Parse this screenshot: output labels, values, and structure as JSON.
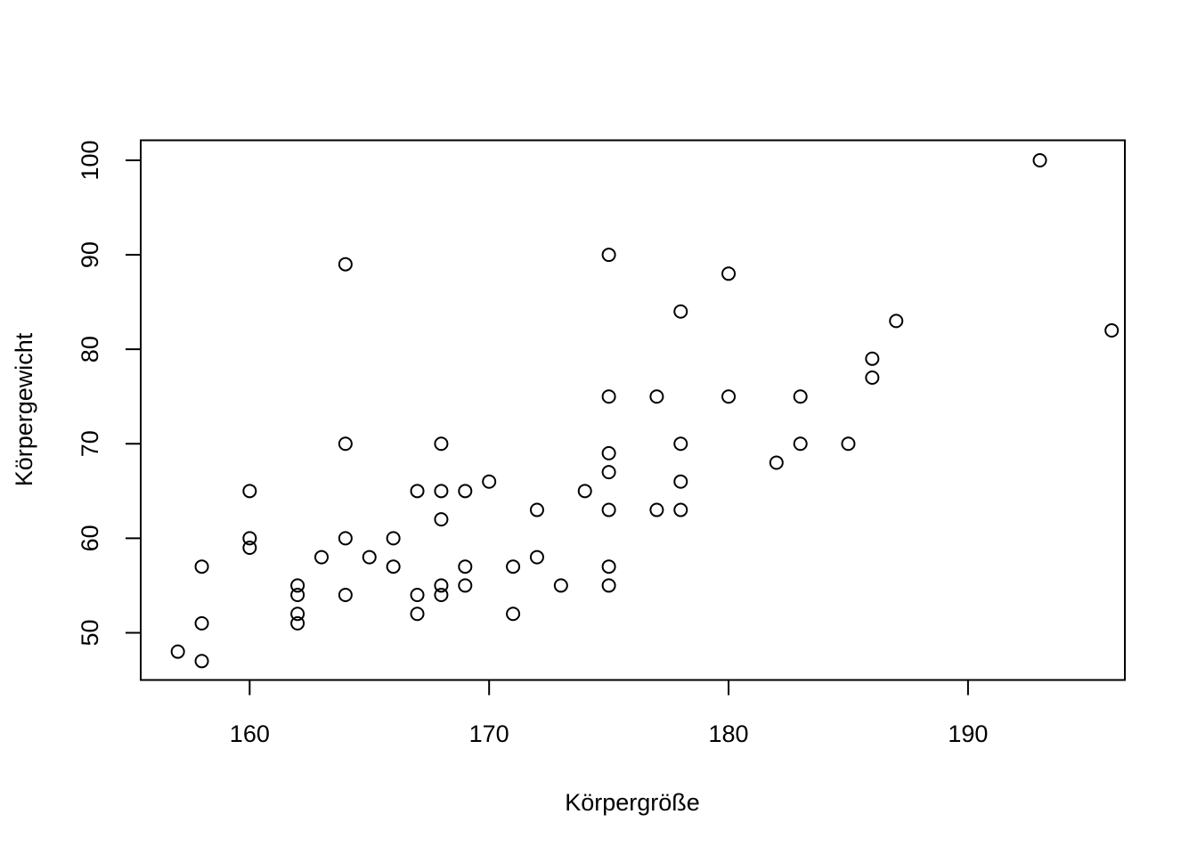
{
  "chart_data": {
    "type": "scatter",
    "title": "",
    "xlabel": "Körpergröße",
    "ylabel": "Körpergewicht",
    "xlim": [
      155.45,
      196.55
    ],
    "ylim": [
      45.0,
      102.12
    ],
    "x_ticks": [
      160,
      170,
      180,
      190
    ],
    "y_ticks": [
      50,
      60,
      70,
      80,
      90,
      100
    ],
    "grid": false,
    "legend": "none",
    "marker": "open-circle",
    "color": "#000000",
    "points": [
      {
        "x": 157,
        "y": 48
      },
      {
        "x": 158,
        "y": 47
      },
      {
        "x": 158,
        "y": 51
      },
      {
        "x": 158,
        "y": 57
      },
      {
        "x": 160,
        "y": 65
      },
      {
        "x": 160,
        "y": 60
      },
      {
        "x": 160,
        "y": 59
      },
      {
        "x": 162,
        "y": 55
      },
      {
        "x": 162,
        "y": 54
      },
      {
        "x": 162,
        "y": 52
      },
      {
        "x": 162,
        "y": 51
      },
      {
        "x": 163,
        "y": 58
      },
      {
        "x": 164,
        "y": 89
      },
      {
        "x": 164,
        "y": 70
      },
      {
        "x": 164,
        "y": 60
      },
      {
        "x": 164,
        "y": 54
      },
      {
        "x": 165,
        "y": 58
      },
      {
        "x": 166,
        "y": 60
      },
      {
        "x": 166,
        "y": 57
      },
      {
        "x": 167,
        "y": 65
      },
      {
        "x": 167,
        "y": 54
      },
      {
        "x": 167,
        "y": 52
      },
      {
        "x": 168,
        "y": 70
      },
      {
        "x": 168,
        "y": 65
      },
      {
        "x": 168,
        "y": 62
      },
      {
        "x": 168,
        "y": 55
      },
      {
        "x": 168,
        "y": 54
      },
      {
        "x": 169,
        "y": 65
      },
      {
        "x": 169,
        "y": 57
      },
      {
        "x": 169,
        "y": 55
      },
      {
        "x": 170,
        "y": 66
      },
      {
        "x": 171,
        "y": 57
      },
      {
        "x": 171,
        "y": 52
      },
      {
        "x": 172,
        "y": 63
      },
      {
        "x": 172,
        "y": 58
      },
      {
        "x": 173,
        "y": 55
      },
      {
        "x": 174,
        "y": 65
      },
      {
        "x": 175,
        "y": 90
      },
      {
        "x": 175,
        "y": 75
      },
      {
        "x": 175,
        "y": 69
      },
      {
        "x": 175,
        "y": 67
      },
      {
        "x": 175,
        "y": 63
      },
      {
        "x": 175,
        "y": 57
      },
      {
        "x": 175,
        "y": 55
      },
      {
        "x": 177,
        "y": 75
      },
      {
        "x": 177,
        "y": 63
      },
      {
        "x": 178,
        "y": 84
      },
      {
        "x": 178,
        "y": 70
      },
      {
        "x": 178,
        "y": 66
      },
      {
        "x": 178,
        "y": 63
      },
      {
        "x": 180,
        "y": 88
      },
      {
        "x": 180,
        "y": 75
      },
      {
        "x": 182,
        "y": 68
      },
      {
        "x": 183,
        "y": 75
      },
      {
        "x": 183,
        "y": 70
      },
      {
        "x": 185,
        "y": 70
      },
      {
        "x": 186,
        "y": 79
      },
      {
        "x": 186,
        "y": 77
      },
      {
        "x": 187,
        "y": 83
      },
      {
        "x": 193,
        "y": 100
      },
      {
        "x": 196,
        "y": 82
      }
    ]
  }
}
